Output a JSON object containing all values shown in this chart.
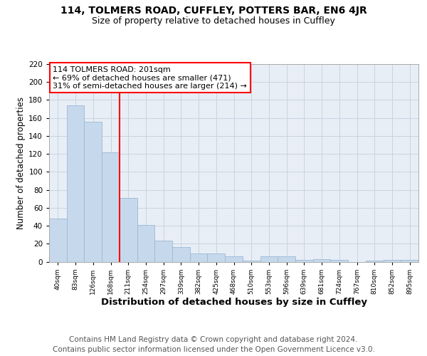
{
  "title1": "114, TOLMERS ROAD, CUFFLEY, POTTERS BAR, EN6 4JR",
  "title2": "Size of property relative to detached houses in Cuffley",
  "xlabel": "Distribution of detached houses by size in Cuffley",
  "ylabel": "Number of detached properties",
  "categories": [
    "40sqm",
    "83sqm",
    "126sqm",
    "168sqm",
    "211sqm",
    "254sqm",
    "297sqm",
    "339sqm",
    "382sqm",
    "425sqm",
    "468sqm",
    "510sqm",
    "553sqm",
    "596sqm",
    "639sqm",
    "681sqm",
    "724sqm",
    "767sqm",
    "810sqm",
    "852sqm",
    "895sqm"
  ],
  "values": [
    48,
    174,
    156,
    122,
    71,
    41,
    23,
    16,
    9,
    9,
    6,
    1,
    6,
    6,
    2,
    3,
    2,
    0,
    1,
    2,
    2
  ],
  "bar_color": "#c6d9ec",
  "bar_edge_color": "#9bb8d4",
  "vline_x_index": 4,
  "vline_color": "red",
  "annotation_line1": "114 TOLMERS ROAD: 201sqm",
  "annotation_line2": "← 69% of detached houses are smaller (471)",
  "annotation_line3": "31% of semi-detached houses are larger (214) →",
  "annotation_box_color": "white",
  "annotation_box_edge_color": "red",
  "ylim": [
    0,
    220
  ],
  "yticks": [
    0,
    20,
    40,
    60,
    80,
    100,
    120,
    140,
    160,
    180,
    200,
    220
  ],
  "grid_color": "#c8d4e0",
  "background_color": "#e8eef6",
  "footnote1": "Contains HM Land Registry data © Crown copyright and database right 2024.",
  "footnote2": "Contains public sector information licensed under the Open Government Licence v3.0.",
  "title_fontsize": 10,
  "subtitle_fontsize": 9,
  "footnote_fontsize": 7.5,
  "xlabel_fontsize": 9.5,
  "ylabel_fontsize": 8.5,
  "annotation_fontsize": 8
}
